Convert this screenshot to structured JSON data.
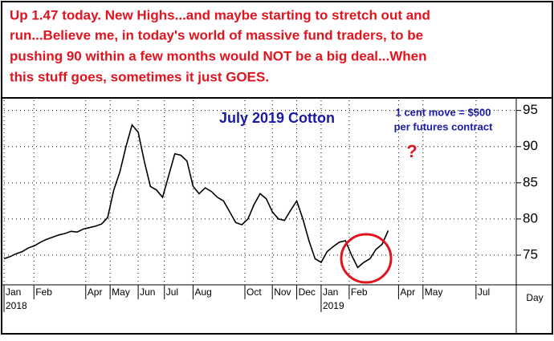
{
  "header": {
    "lines": [
      "Up 1.47 today. New Highs...and maybe starting to stretch out and",
      "run...Believe me, in today's world of massive fund traders, to be",
      "pushing 90 within a few months would NOT be a big deal...When",
      "this stuff goes, sometimes it just GOES."
    ]
  },
  "chart_data": {
    "type": "line",
    "title": "July 2019 Cotton",
    "annotations": [
      "1 cent move = $500",
      "per futures contract",
      "?"
    ],
    "x_axis_label": "Day",
    "series": [
      {
        "name": "July 2019 Cotton",
        "color": "#000000",
        "values": [
          74.5,
          74.8,
          75.2,
          75.5,
          76,
          76.3,
          76.8,
          77.2,
          77.5,
          77.8,
          78,
          78.3,
          78.2,
          78.6,
          78.8,
          79,
          79.3,
          80.2,
          84,
          86.5,
          90,
          93,
          92,
          88,
          84.5,
          84,
          83,
          86,
          89,
          88.8,
          88,
          84.5,
          83.5,
          84.3,
          83.8,
          83,
          82.5,
          81,
          79.5,
          79.2,
          80,
          82,
          83.5,
          82.8,
          81,
          80,
          79.8,
          81.2,
          82.5,
          80,
          77,
          74.5,
          74,
          75.5,
          76.2,
          76.8,
          77,
          75,
          73.3,
          74,
          74.5,
          75.8,
          76.5,
          78.4
        ]
      }
    ],
    "xlim": [
      0,
      84
    ],
    "xticks": [
      {
        "value": 0,
        "label": "Jan"
      },
      {
        "value": 4.9,
        "label": "Feb"
      },
      {
        "value": 13.4,
        "label": "Apr"
      },
      {
        "value": 17.4,
        "label": "May"
      },
      {
        "value": 22,
        "label": "Jun"
      },
      {
        "value": 26.3,
        "label": "Jul"
      },
      {
        "value": 31,
        "label": "Aug"
      },
      {
        "value": 39.5,
        "label": "Oct"
      },
      {
        "value": 44,
        "label": "Nov"
      },
      {
        "value": 48,
        "label": "Dec"
      },
      {
        "value": 52,
        "label": "Jan"
      },
      {
        "value": 56.6,
        "label": "Feb"
      },
      {
        "value": 64.7,
        "label": "Apr"
      },
      {
        "value": 68.7,
        "label": "May"
      },
      {
        "value": 77.4,
        "label": "Jul"
      }
    ],
    "x_year_labels": [
      {
        "value": 0,
        "label": "2018"
      },
      {
        "value": 52,
        "label": "2019"
      }
    ],
    "ylim": [
      70.9,
      96.4
    ],
    "yticks": [
      75,
      80,
      85,
      90,
      95
    ],
    "grid": true
  }
}
